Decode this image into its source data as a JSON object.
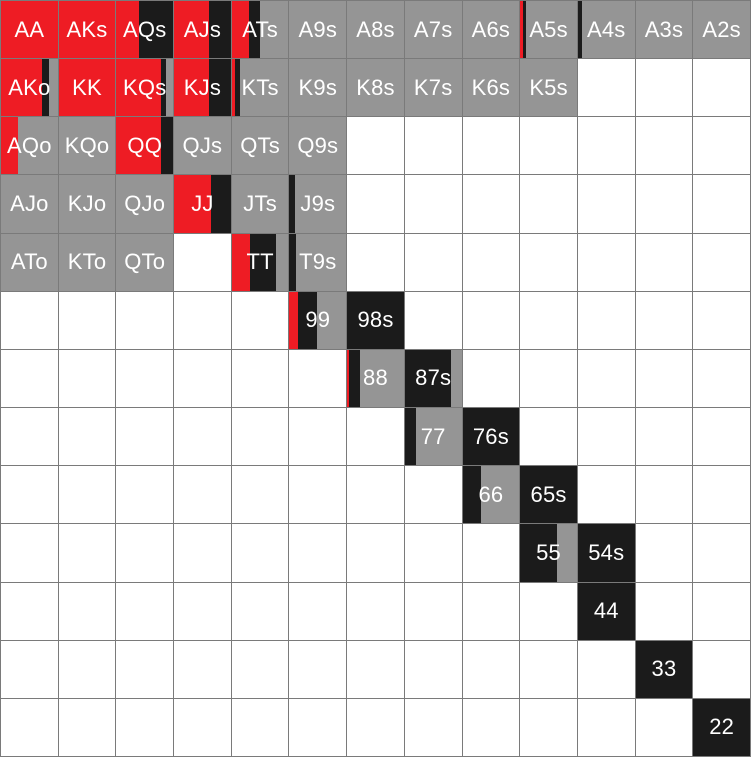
{
  "colors": {
    "raise": "#ee1c24",
    "call": "#1b1b1b",
    "fold": "#959595",
    "empty": "#ffffff",
    "label": "#ffffff",
    "gridline": "#7a7a7a"
  },
  "rows": [
    [
      {
        "label": "AA",
        "segments": [
          [
            "raise",
            1
          ]
        ]
      },
      {
        "label": "AKs",
        "segments": [
          [
            "raise",
            1
          ]
        ]
      },
      {
        "label": "AQs",
        "segments": [
          [
            "raise",
            0.4
          ],
          [
            "call",
            0.6
          ]
        ]
      },
      {
        "label": "AJs",
        "segments": [
          [
            "raise",
            0.62
          ],
          [
            "call",
            0.38
          ]
        ]
      },
      {
        "label": "ATs",
        "segments": [
          [
            "raise",
            0.3
          ],
          [
            "call",
            0.2
          ],
          [
            "fold",
            0.5
          ]
        ]
      },
      {
        "label": "A9s",
        "segments": [
          [
            "fold",
            1
          ]
        ]
      },
      {
        "label": "A8s",
        "segments": [
          [
            "fold",
            1
          ]
        ]
      },
      {
        "label": "A7s",
        "segments": [
          [
            "fold",
            1
          ]
        ]
      },
      {
        "label": "A6s",
        "segments": [
          [
            "fold",
            1
          ]
        ]
      },
      {
        "label": "A5s",
        "segments": [
          [
            "raise",
            0.05
          ],
          [
            "call",
            0.05
          ],
          [
            "fold",
            0.9
          ]
        ]
      },
      {
        "label": "A4s",
        "segments": [
          [
            "call",
            0.07
          ],
          [
            "fold",
            0.93
          ]
        ]
      },
      {
        "label": "A3s",
        "segments": [
          [
            "fold",
            1
          ]
        ]
      },
      {
        "label": "A2s",
        "segments": [
          [
            "fold",
            1
          ]
        ]
      }
    ],
    [
      {
        "label": "AKo",
        "segments": [
          [
            "raise",
            0.72
          ],
          [
            "call",
            0.13
          ],
          [
            "fold",
            0.15
          ]
        ]
      },
      {
        "label": "KK",
        "segments": [
          [
            "raise",
            1
          ]
        ]
      },
      {
        "label": "KQs",
        "segments": [
          [
            "raise",
            0.78
          ],
          [
            "call",
            0.1
          ],
          [
            "fold",
            0.12
          ]
        ]
      },
      {
        "label": "KJs",
        "segments": [
          [
            "raise",
            0.62
          ],
          [
            "call",
            0.38
          ]
        ]
      },
      {
        "label": "KTs",
        "segments": [
          [
            "raise",
            0.06
          ],
          [
            "call",
            0.08
          ],
          [
            "fold",
            0.86
          ]
        ]
      },
      {
        "label": "K9s",
        "segments": [
          [
            "fold",
            1
          ]
        ]
      },
      {
        "label": "K8s",
        "segments": [
          [
            "fold",
            1
          ]
        ]
      },
      {
        "label": "K7s",
        "segments": [
          [
            "fold",
            1
          ]
        ]
      },
      {
        "label": "K6s",
        "segments": [
          [
            "fold",
            1
          ]
        ]
      },
      {
        "label": "K5s",
        "segments": [
          [
            "fold",
            1
          ]
        ]
      },
      {
        "label": "",
        "segments": []
      },
      {
        "label": "",
        "segments": []
      },
      {
        "label": "",
        "segments": []
      }
    ],
    [
      {
        "label": "AQo",
        "segments": [
          [
            "raise",
            0.3
          ],
          [
            "fold",
            0.7
          ]
        ]
      },
      {
        "label": "KQo",
        "segments": [
          [
            "fold",
            1
          ]
        ]
      },
      {
        "label": "QQ",
        "segments": [
          [
            "raise",
            0.78
          ],
          [
            "call",
            0.22
          ]
        ]
      },
      {
        "label": "QJs",
        "segments": [
          [
            "fold",
            1
          ]
        ]
      },
      {
        "label": "QTs",
        "segments": [
          [
            "fold",
            1
          ]
        ]
      },
      {
        "label": "Q9s",
        "segments": [
          [
            "fold",
            1
          ]
        ]
      },
      {
        "label": "",
        "segments": []
      },
      {
        "label": "",
        "segments": []
      },
      {
        "label": "",
        "segments": []
      },
      {
        "label": "",
        "segments": []
      },
      {
        "label": "",
        "segments": []
      },
      {
        "label": "",
        "segments": []
      },
      {
        "label": "",
        "segments": []
      }
    ],
    [
      {
        "label": "AJo",
        "segments": [
          [
            "fold",
            1
          ]
        ]
      },
      {
        "label": "KJo",
        "segments": [
          [
            "fold",
            1
          ]
        ]
      },
      {
        "label": "QJo",
        "segments": [
          [
            "fold",
            1
          ]
        ]
      },
      {
        "label": "JJ",
        "segments": [
          [
            "raise",
            0.66
          ],
          [
            "call",
            0.34
          ]
        ]
      },
      {
        "label": "JTs",
        "segments": [
          [
            "fold",
            1
          ]
        ]
      },
      {
        "label": "J9s",
        "segments": [
          [
            "call",
            0.1
          ],
          [
            "fold",
            0.9
          ]
        ]
      },
      {
        "label": "",
        "segments": []
      },
      {
        "label": "",
        "segments": []
      },
      {
        "label": "",
        "segments": []
      },
      {
        "label": "",
        "segments": []
      },
      {
        "label": "",
        "segments": []
      },
      {
        "label": "",
        "segments": []
      },
      {
        "label": "",
        "segments": []
      }
    ],
    [
      {
        "label": "ATo",
        "segments": [
          [
            "fold",
            1
          ]
        ]
      },
      {
        "label": "KTo",
        "segments": [
          [
            "fold",
            1
          ]
        ]
      },
      {
        "label": "QTo",
        "segments": [
          [
            "fold",
            1
          ]
        ]
      },
      {
        "label": "",
        "segments": []
      },
      {
        "label": "TT",
        "segments": [
          [
            "raise",
            0.33
          ],
          [
            "call",
            0.45
          ],
          [
            "fold",
            0.22
          ]
        ]
      },
      {
        "label": "T9s",
        "segments": [
          [
            "call",
            0.12
          ],
          [
            "fold",
            0.88
          ]
        ]
      },
      {
        "label": "",
        "segments": []
      },
      {
        "label": "",
        "segments": []
      },
      {
        "label": "",
        "segments": []
      },
      {
        "label": "",
        "segments": []
      },
      {
        "label": "",
        "segments": []
      },
      {
        "label": "",
        "segments": []
      },
      {
        "label": "",
        "segments": []
      }
    ],
    [
      {
        "label": "",
        "segments": []
      },
      {
        "label": "",
        "segments": []
      },
      {
        "label": "",
        "segments": []
      },
      {
        "label": "",
        "segments": []
      },
      {
        "label": "",
        "segments": []
      },
      {
        "label": "99",
        "segments": [
          [
            "raise",
            0.15
          ],
          [
            "call",
            0.34
          ],
          [
            "fold",
            0.51
          ]
        ]
      },
      {
        "label": "98s",
        "segments": [
          [
            "call",
            1
          ]
        ]
      },
      {
        "label": "",
        "segments": []
      },
      {
        "label": "",
        "segments": []
      },
      {
        "label": "",
        "segments": []
      },
      {
        "label": "",
        "segments": []
      },
      {
        "label": "",
        "segments": []
      },
      {
        "label": "",
        "segments": []
      }
    ],
    [
      {
        "label": "",
        "segments": []
      },
      {
        "label": "",
        "segments": []
      },
      {
        "label": "",
        "segments": []
      },
      {
        "label": "",
        "segments": []
      },
      {
        "label": "",
        "segments": []
      },
      {
        "label": "",
        "segments": []
      },
      {
        "label": "88",
        "segments": [
          [
            "raise",
            0.03
          ],
          [
            "call",
            0.2
          ],
          [
            "fold",
            0.77
          ]
        ]
      },
      {
        "label": "87s",
        "segments": [
          [
            "call",
            0.82
          ],
          [
            "fold",
            0.18
          ]
        ]
      },
      {
        "label": "",
        "segments": []
      },
      {
        "label": "",
        "segments": []
      },
      {
        "label": "",
        "segments": []
      },
      {
        "label": "",
        "segments": []
      },
      {
        "label": "",
        "segments": []
      }
    ],
    [
      {
        "label": "",
        "segments": []
      },
      {
        "label": "",
        "segments": []
      },
      {
        "label": "",
        "segments": []
      },
      {
        "label": "",
        "segments": []
      },
      {
        "label": "",
        "segments": []
      },
      {
        "label": "",
        "segments": []
      },
      {
        "label": "",
        "segments": []
      },
      {
        "label": "77",
        "segments": [
          [
            "call",
            0.2
          ],
          [
            "fold",
            0.8
          ]
        ]
      },
      {
        "label": "76s",
        "segments": [
          [
            "call",
            1
          ]
        ]
      },
      {
        "label": "",
        "segments": []
      },
      {
        "label": "",
        "segments": []
      },
      {
        "label": "",
        "segments": []
      },
      {
        "label": "",
        "segments": []
      }
    ],
    [
      {
        "label": "",
        "segments": []
      },
      {
        "label": "",
        "segments": []
      },
      {
        "label": "",
        "segments": []
      },
      {
        "label": "",
        "segments": []
      },
      {
        "label": "",
        "segments": []
      },
      {
        "label": "",
        "segments": []
      },
      {
        "label": "",
        "segments": []
      },
      {
        "label": "",
        "segments": []
      },
      {
        "label": "66",
        "segments": [
          [
            "call",
            0.33
          ],
          [
            "fold",
            0.67
          ]
        ]
      },
      {
        "label": "65s",
        "segments": [
          [
            "call",
            1
          ]
        ]
      },
      {
        "label": "",
        "segments": []
      },
      {
        "label": "",
        "segments": []
      },
      {
        "label": "",
        "segments": []
      }
    ],
    [
      {
        "label": "",
        "segments": []
      },
      {
        "label": "",
        "segments": []
      },
      {
        "label": "",
        "segments": []
      },
      {
        "label": "",
        "segments": []
      },
      {
        "label": "",
        "segments": []
      },
      {
        "label": "",
        "segments": []
      },
      {
        "label": "",
        "segments": []
      },
      {
        "label": "",
        "segments": []
      },
      {
        "label": "",
        "segments": []
      },
      {
        "label": "55",
        "segments": [
          [
            "call",
            0.64
          ],
          [
            "fold",
            0.36
          ]
        ]
      },
      {
        "label": "54s",
        "segments": [
          [
            "call",
            1
          ]
        ]
      },
      {
        "label": "",
        "segments": []
      },
      {
        "label": "",
        "segments": []
      }
    ],
    [
      {
        "label": "",
        "segments": []
      },
      {
        "label": "",
        "segments": []
      },
      {
        "label": "",
        "segments": []
      },
      {
        "label": "",
        "segments": []
      },
      {
        "label": "",
        "segments": []
      },
      {
        "label": "",
        "segments": []
      },
      {
        "label": "",
        "segments": []
      },
      {
        "label": "",
        "segments": []
      },
      {
        "label": "",
        "segments": []
      },
      {
        "label": "",
        "segments": []
      },
      {
        "label": "44",
        "segments": [
          [
            "call",
            1
          ]
        ]
      },
      {
        "label": "",
        "segments": []
      },
      {
        "label": "",
        "segments": []
      }
    ],
    [
      {
        "label": "",
        "segments": []
      },
      {
        "label": "",
        "segments": []
      },
      {
        "label": "",
        "segments": []
      },
      {
        "label": "",
        "segments": []
      },
      {
        "label": "",
        "segments": []
      },
      {
        "label": "",
        "segments": []
      },
      {
        "label": "",
        "segments": []
      },
      {
        "label": "",
        "segments": []
      },
      {
        "label": "",
        "segments": []
      },
      {
        "label": "",
        "segments": []
      },
      {
        "label": "",
        "segments": []
      },
      {
        "label": "33",
        "segments": [
          [
            "call",
            1
          ]
        ]
      },
      {
        "label": "",
        "segments": []
      }
    ],
    [
      {
        "label": "",
        "segments": []
      },
      {
        "label": "",
        "segments": []
      },
      {
        "label": "",
        "segments": []
      },
      {
        "label": "",
        "segments": []
      },
      {
        "label": "",
        "segments": []
      },
      {
        "label": "",
        "segments": []
      },
      {
        "label": "",
        "segments": []
      },
      {
        "label": "",
        "segments": []
      },
      {
        "label": "",
        "segments": []
      },
      {
        "label": "",
        "segments": []
      },
      {
        "label": "",
        "segments": []
      },
      {
        "label": "",
        "segments": []
      },
      {
        "label": "22",
        "segments": [
          [
            "call",
            1
          ]
        ]
      }
    ]
  ]
}
